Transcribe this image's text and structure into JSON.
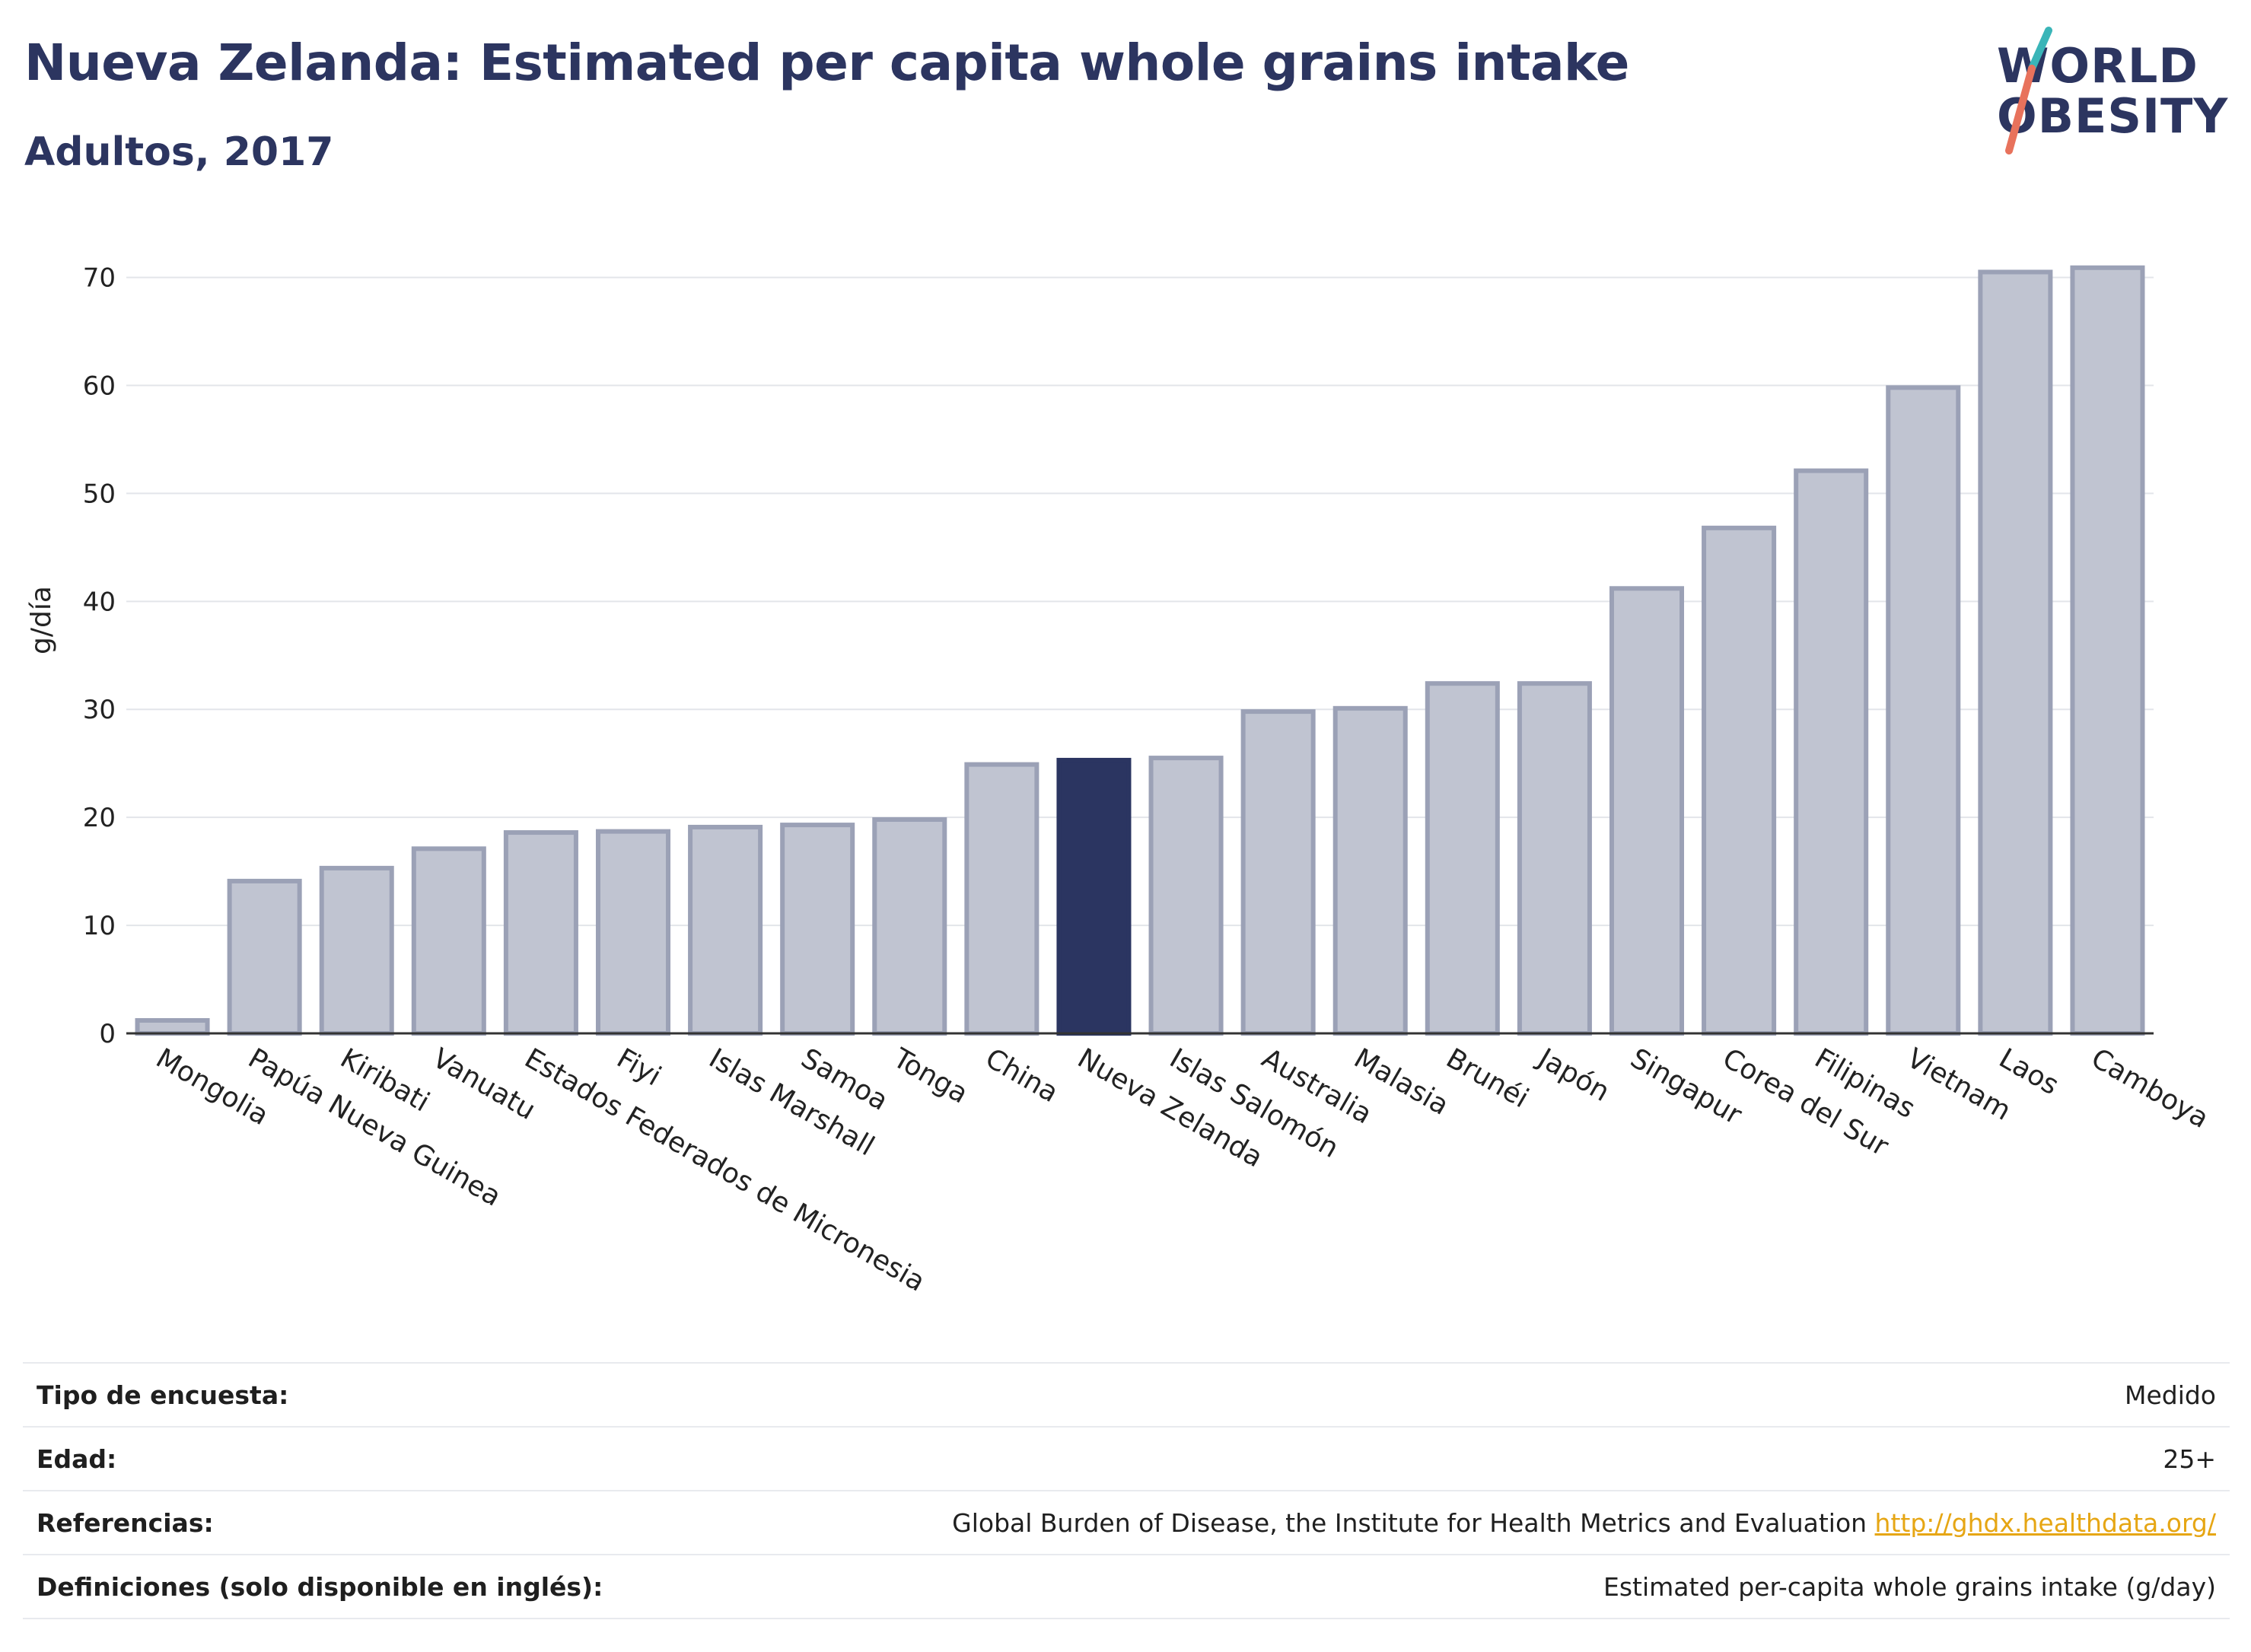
{
  "header": {
    "title": "Nueva Zelanda: Estimated per capita whole grains intake",
    "subtitle": "Adultos, 2017"
  },
  "logo": {
    "line1": "WORLD",
    "line2": "OBESITY"
  },
  "colors": {
    "highlight": "#2b3561",
    "bar_fill": "#c0c4d1",
    "bar_stroke": "#9ba1b6",
    "title": "#2c3560",
    "link": "#e6a614"
  },
  "chart_data": {
    "type": "bar",
    "ylabel": "g/día",
    "xlabel": "",
    "ylim": [
      0,
      73
    ],
    "yticks": [
      0,
      10,
      20,
      30,
      40,
      50,
      60,
      70
    ],
    "grid": true,
    "highlight": "Nueva Zelanda",
    "categories": [
      "Mongolia",
      "Papúa Nueva Guinea",
      "Kiribati",
      "Vanuatu",
      "Estados Federados de Micronesia",
      "Fiyi",
      "Islas Marshall",
      "Samoa",
      "Tonga",
      "China",
      "Nueva Zelanda",
      "Islas Salomón",
      "Australia",
      "Malasia",
      "Brunéi",
      "Japón",
      "Singapur",
      "Corea del Sur",
      "Filipinas",
      "Vietnam",
      "Laos",
      "Camboya"
    ],
    "values": [
      1.2,
      14.1,
      15.3,
      17.1,
      18.6,
      18.7,
      19.1,
      19.3,
      19.8,
      24.9,
      25.3,
      25.5,
      29.8,
      30.1,
      32.4,
      32.4,
      41.2,
      46.8,
      52.1,
      59.8,
      70.5,
      70.9
    ]
  },
  "info": {
    "rows": [
      {
        "label": "Tipo de encuesta:",
        "value": "Medido"
      },
      {
        "label": "Edad:",
        "value": "25+"
      },
      {
        "label": "Referencias:",
        "value": "Global Burden of Disease, the Institute for Health Metrics and Evaluation",
        "link": "http://ghdx.healthdata.org/"
      },
      {
        "label": "Definiciones (solo disponible en inglés):",
        "value": "Estimated per-capita whole grains intake (g/day)"
      }
    ]
  }
}
